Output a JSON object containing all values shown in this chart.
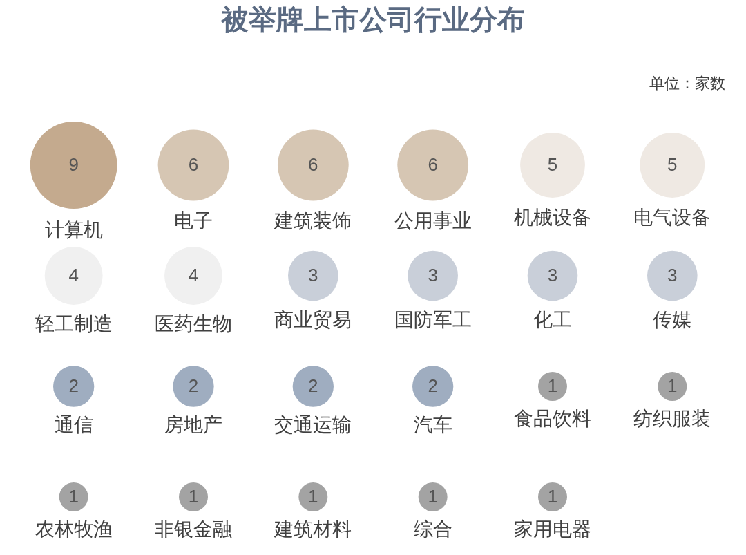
{
  "chart_data": {
    "type": "other",
    "title": "被举牌上市公司行业分布",
    "annotations": [
      "单位：家数"
    ],
    "categories": [
      "计算机",
      "电子",
      "建筑装饰",
      "公用事业",
      "机械设备",
      "电气设备",
      "轻工制造",
      "医药生物",
      "商业贸易",
      "国防军工",
      "化工",
      "传媒",
      "通信",
      "房地产",
      "交通运输",
      "汽车",
      "食品饮料",
      "纺织服装",
      "农林牧渔",
      "非银金融",
      "建筑材料",
      "综合",
      "家用电器"
    ],
    "values": [
      9,
      6,
      6,
      6,
      5,
      5,
      4,
      4,
      3,
      3,
      3,
      3,
      2,
      2,
      2,
      2,
      1,
      1,
      1,
      1,
      1,
      1,
      1
    ],
    "colors": [
      "#c4aa8e",
      "#d6c6b3",
      "#d6c6b3",
      "#d6c6b3",
      "#efe9e3",
      "#efe9e3",
      "#f0f0f0",
      "#f0f0f0",
      "#c9cfd9",
      "#c9cfd9",
      "#c9cfd9",
      "#c9cfd9",
      "#9fadc0",
      "#9fadc0",
      "#9fadc0",
      "#9fadc0",
      "#a3a3a3",
      "#a3a3a3",
      "#a3a3a3",
      "#a3a3a3",
      "#a3a3a3",
      "#a3a3a3",
      "#a3a3a3"
    ],
    "data_labels": true
  }
}
